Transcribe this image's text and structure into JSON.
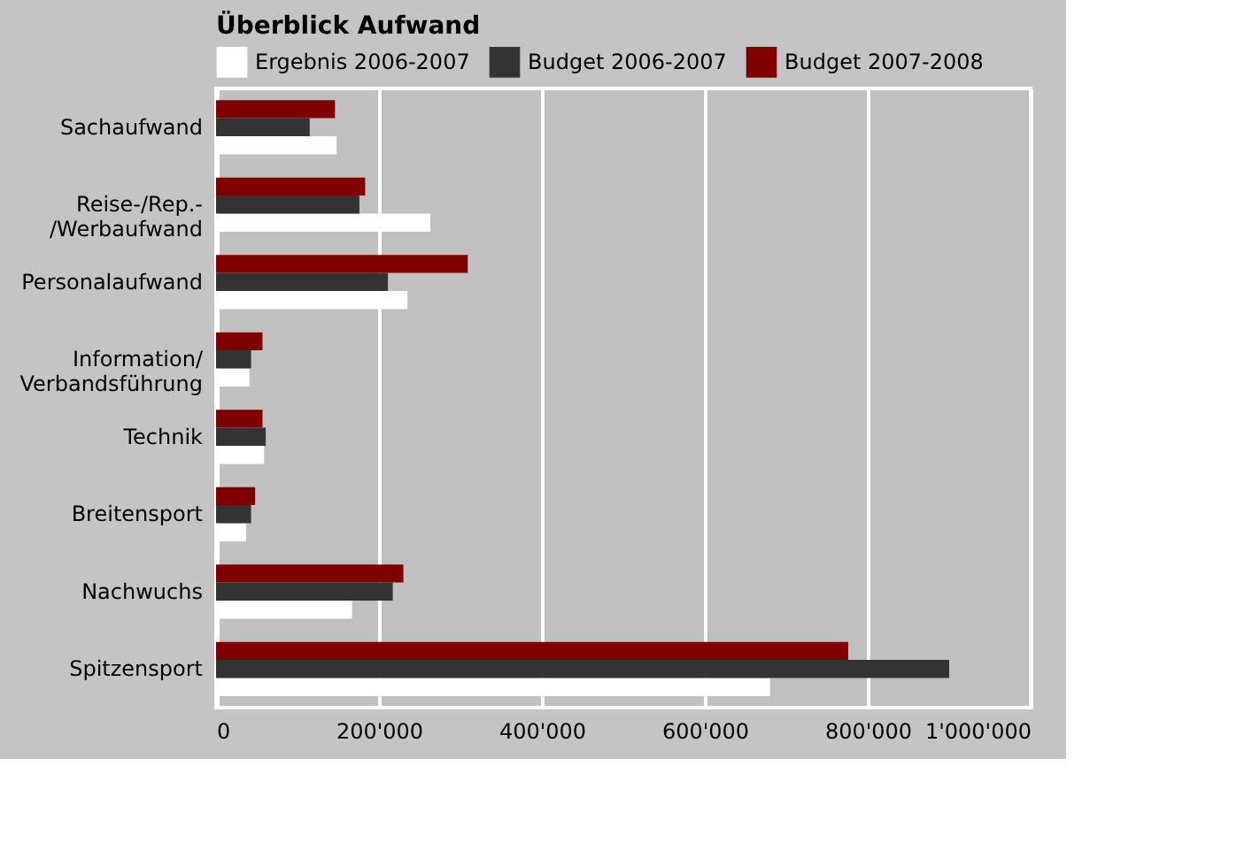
{
  "chart_data": {
    "type": "bar",
    "orientation": "horizontal",
    "title": "Überblick Aufwand",
    "categories": [
      "Sachaufwand",
      "Reise-/Rep.-\n/Werbaufwand",
      "Personalaufwand",
      "Information/\nVerbandsführung",
      "Technik",
      "Breitensport",
      "Nachwuchs",
      "Spitzensport"
    ],
    "series": [
      {
        "name": "Ergebnis 2006-2007",
        "color": "#ffffff",
        "values": [
          148000,
          263000,
          235000,
          41000,
          59000,
          37000,
          167000,
          680000
        ]
      },
      {
        "name": "Budget 2006-2007",
        "color": "#333333",
        "values": [
          115000,
          176000,
          211000,
          43000,
          61000,
          43000,
          217000,
          900000
        ]
      },
      {
        "name": "Budget 2007-2008",
        "color": "#800000",
        "values": [
          146000,
          183000,
          309000,
          57000,
          57000,
          48000,
          230000,
          776000
        ]
      }
    ],
    "xlim": [
      0,
      1000000
    ],
    "xticks": [
      0,
      {
        "value": 200000,
        "label": "200'000"
      },
      {
        "value": 400000,
        "label": "400'000"
      },
      {
        "value": 600000,
        "label": "600'000"
      },
      {
        "value": 800000,
        "label": "800'000"
      },
      {
        "value": 1000000,
        "label": "1'000'000"
      }
    ],
    "grid": "x",
    "legend": "top"
  }
}
